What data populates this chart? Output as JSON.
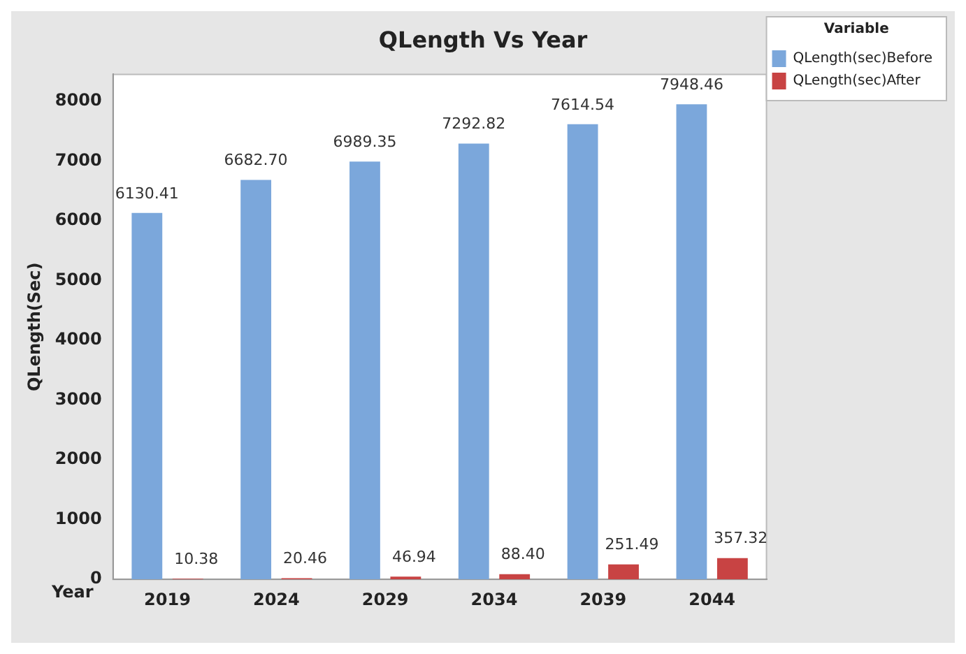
{
  "chart_data": {
    "type": "bar",
    "title": "QLength Vs Year",
    "xlabel": "Year",
    "ylabel": "QLength(Sec)",
    "legend_title": "Variable",
    "categories": [
      "2019",
      "2024",
      "2029",
      "2034",
      "2039",
      "2044"
    ],
    "series": [
      {
        "name": "QLength(sec)Before",
        "color": "#7ba7db",
        "values": [
          6130.41,
          6682.7,
          6989.35,
          7292.82,
          7614.54,
          7948.46
        ],
        "value_labels": [
          "6130.41",
          "6682.70",
          "6989.35",
          "7292.82",
          "7614.54",
          "7948.46"
        ]
      },
      {
        "name": "QLength(sec)After",
        "color": "#c84343",
        "values": [
          10.38,
          20.46,
          46.94,
          88.4,
          251.49,
          357.32
        ],
        "value_labels": [
          "10.38",
          "20.46",
          "46.94",
          "88.40",
          "251.49",
          "357.32"
        ]
      }
    ],
    "ylim": [
      0,
      8450
    ],
    "yticks": [
      0,
      1000,
      2000,
      3000,
      4000,
      5000,
      6000,
      7000,
      8000
    ],
    "grid": false,
    "legend": "top right"
  }
}
